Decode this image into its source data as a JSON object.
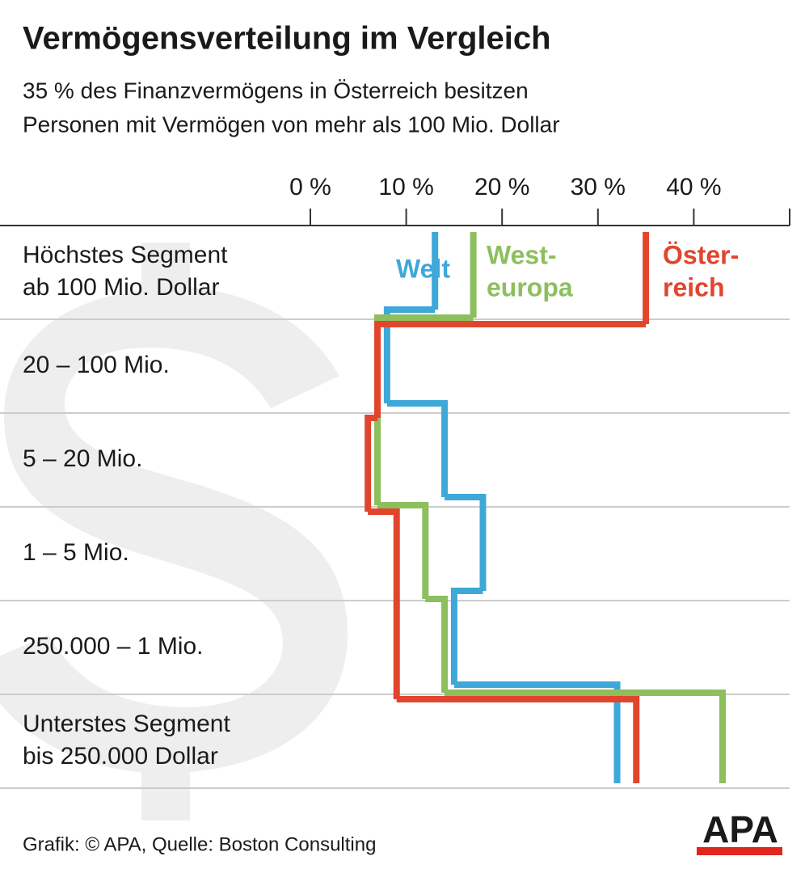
{
  "chart_data": {
    "type": "step",
    "title": "Vermögensverteilung im Vergleich",
    "subtitle": [
      "35 % des Finanzvermögens in Österreich besitzen",
      "Personen mit Vermögen von mehr als 100 Mio. Dollar"
    ],
    "categories": [
      [
        "Höchstes Segment",
        "ab 100 Mio. Dollar"
      ],
      [
        "20 – 100 Mio."
      ],
      [
        "5 – 20 Mio."
      ],
      [
        "1 – 5 Mio."
      ],
      [
        "250.000 – 1 Mio."
      ],
      [
        "Unterstes Segment",
        "bis 250.000 Dollar"
      ]
    ],
    "series": [
      {
        "name": [
          "Welt"
        ],
        "color": "#3ea8d8",
        "values": [
          13,
          8,
          14,
          18,
          15,
          32
        ]
      },
      {
        "name": [
          "West-",
          "europa"
        ],
        "color": "#8dbf5e",
        "values": [
          17,
          7,
          7,
          12,
          14,
          43
        ]
      },
      {
        "name": [
          "Öster-",
          "reich"
        ],
        "color": "#e1452d",
        "values": [
          35,
          7,
          6,
          9,
          9,
          34
        ]
      }
    ],
    "xlim": [
      0,
      50
    ],
    "xticks": [
      {
        "value": 0,
        "label": "0 %"
      },
      {
        "value": 10,
        "label": "10 %"
      },
      {
        "value": 20,
        "label": "20 %"
      },
      {
        "value": 30,
        "label": "30 %"
      },
      {
        "value": 40,
        "label": "40 %"
      }
    ],
    "source": "Grafik: © APA, Quelle: Boston Consulting",
    "logo": "APA"
  }
}
